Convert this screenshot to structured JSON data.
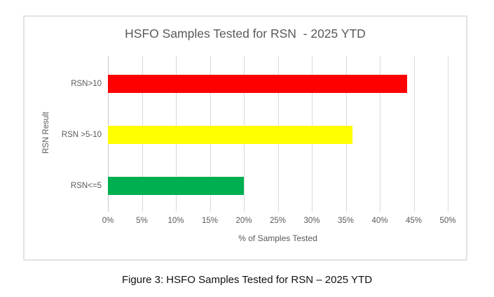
{
  "chart_data": {
    "type": "bar",
    "orientation": "horizontal",
    "title": "HSFO Samples Tested for RSN  - 2025 YTD",
    "xlabel": "% of Samples Tested",
    "ylabel": "RSN Result",
    "categories": [
      "RSN>10",
      "RSN >5-10",
      "RSN<=5"
    ],
    "values": [
      44,
      36,
      20
    ],
    "bar_colors": [
      "#FF0000",
      "#FFFF00",
      "#00B050"
    ],
    "xlim": [
      0,
      50
    ],
    "xticks": [
      0,
      5,
      10,
      15,
      20,
      25,
      30,
      35,
      40,
      45,
      50
    ],
    "xtick_labels": [
      "0%",
      "5%",
      "10%",
      "15%",
      "20%",
      "25%",
      "30%",
      "35%",
      "40%",
      "45%",
      "50%"
    ],
    "grid": "vertical",
    "legend": "none"
  },
  "caption": "Figure 3: HSFO Samples Tested for RSN – 2025 YTD",
  "colors": {
    "grid": "#D9D9D9",
    "axis_text": "#595959",
    "title_text": "#595959",
    "chart_border": "#E2E2E2",
    "caption_text": "#111111"
  }
}
